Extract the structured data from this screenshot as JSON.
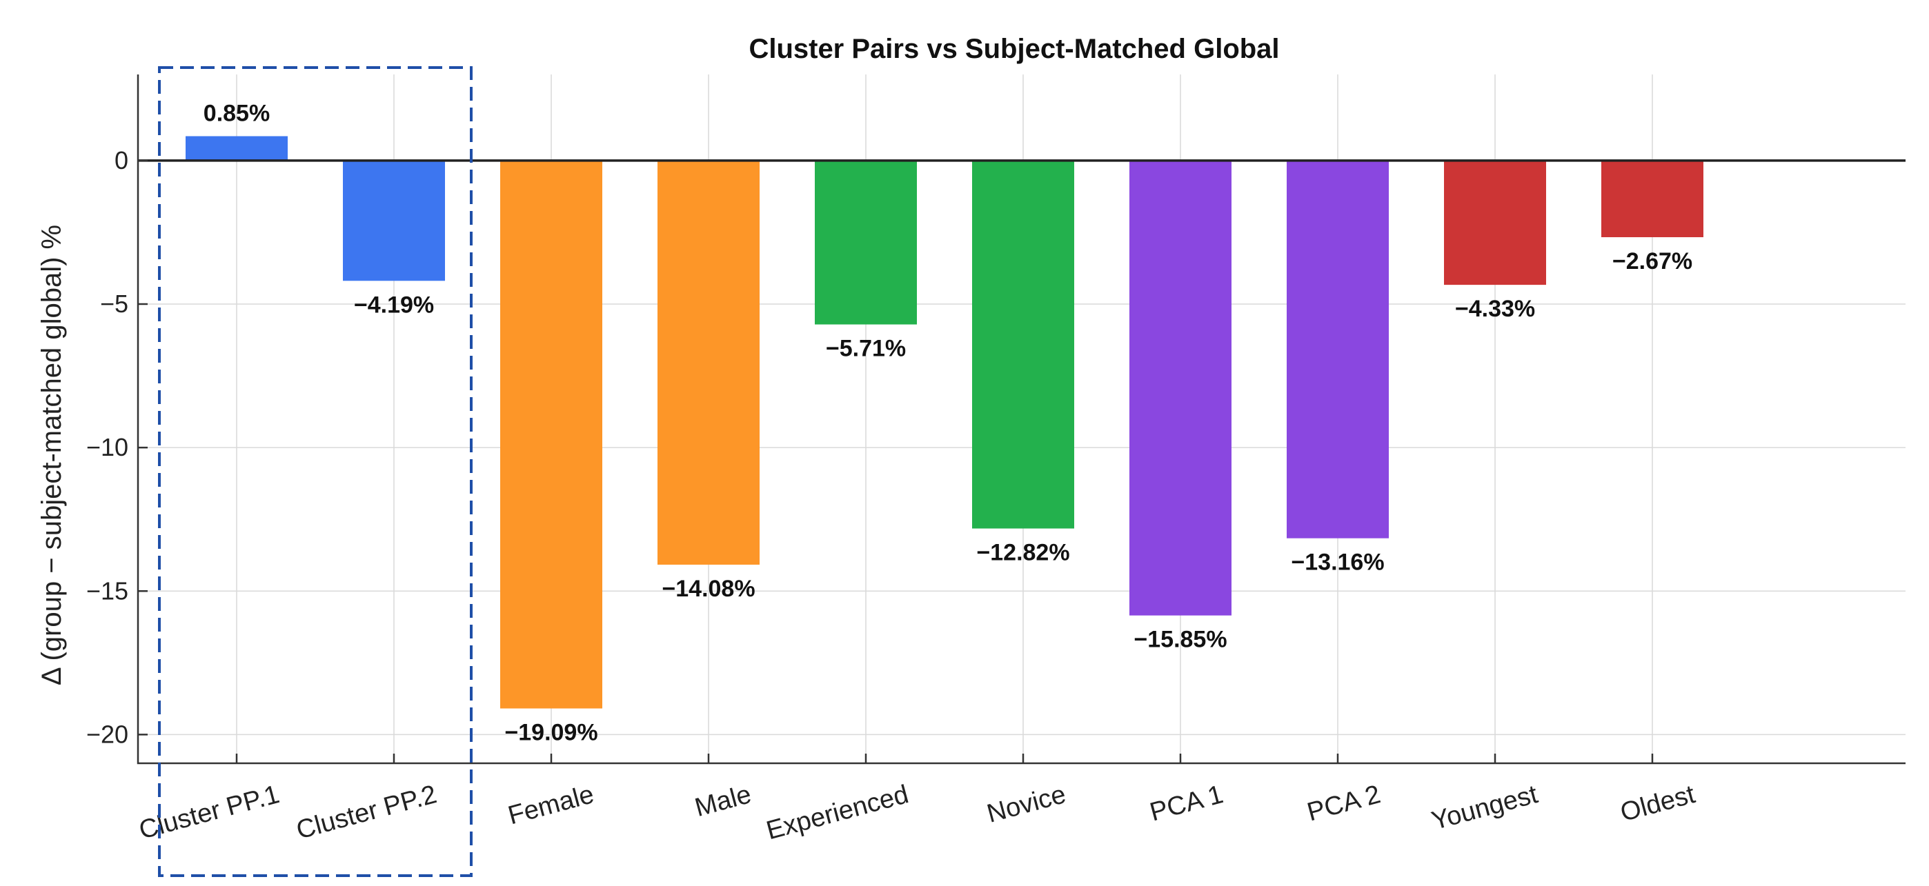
{
  "chart_data": {
    "type": "bar",
    "title": "Cluster Pairs vs Subject-Matched Global",
    "ylabel": "Δ (group − subject-matched global) %",
    "xlabel": "",
    "ylim": [
      -21,
      3
    ],
    "yticks": [
      0,
      -5,
      -10,
      -15,
      -20
    ],
    "ytick_labels": [
      "0",
      "−5",
      "−10",
      "−15",
      "−20"
    ],
    "grid": true,
    "categories": [
      "Cluster PP.1",
      "Cluster PP.2",
      "Female",
      "Male",
      "Experienced",
      "Novice",
      "PCA 1",
      "PCA 2",
      "Youngest",
      "Oldest"
    ],
    "values": [
      0.85,
      -4.19,
      -19.09,
      -14.08,
      -5.71,
      -12.82,
      -15.85,
      -13.16,
      -4.33,
      -2.67
    ],
    "value_labels": [
      "0.85%",
      "−4.19%",
      "−19.09%",
      "−14.08%",
      "−5.71%",
      "−12.82%",
      "−15.85%",
      "−13.16%",
      "−4.33%",
      "−2.67%"
    ],
    "colors": [
      "#3d76f0",
      "#3d76f0",
      "#fd9628",
      "#fd9628",
      "#23b14d",
      "#23b14d",
      "#8a47e0",
      "#8a47e0",
      "#cc3535",
      "#cc3535"
    ],
    "highlight_categories": [
      "Cluster PP.1",
      "Cluster PP.2"
    ],
    "highlight_color": "#1f4fa8"
  }
}
